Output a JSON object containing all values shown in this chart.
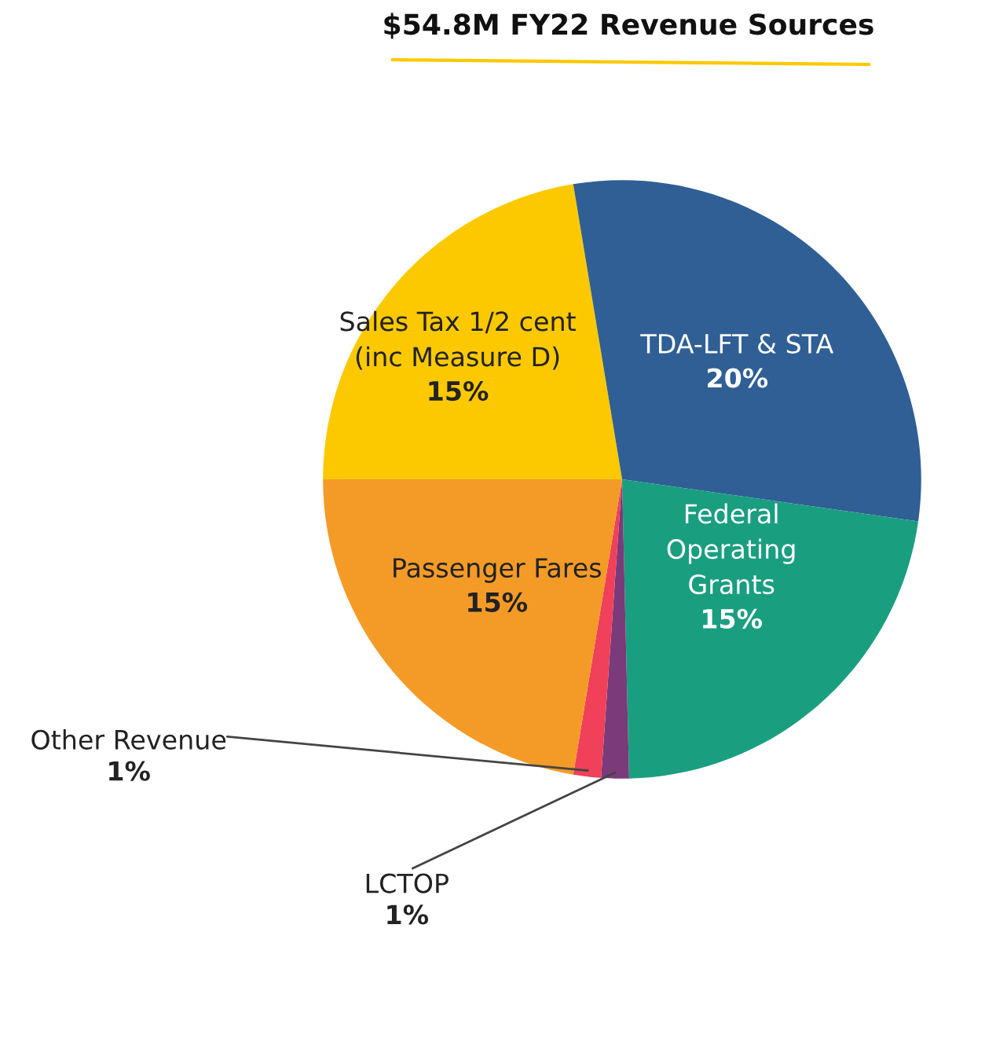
{
  "chart_data": {
    "type": "pie",
    "title": "$54.8M FY22 Revenue Sources",
    "categories": [
      "Sales Tax 1/2 cent (inc Measure D)",
      "TDA-LFT & STA",
      "Federal Operating Grants",
      "LCTOP",
      "Other Revenue",
      "Passenger Fares"
    ],
    "values": [
      15,
      20,
      15,
      1,
      1,
      15
    ],
    "value_labels": [
      "15%",
      "20%",
      "15%",
      "1%",
      "1%",
      "15%"
    ],
    "colors": [
      "#fcc900",
      "#2f5f94",
      "#1a9e80",
      "#7b3a7a",
      "#f0405a",
      "#f49b27"
    ],
    "legend": false
  }
}
